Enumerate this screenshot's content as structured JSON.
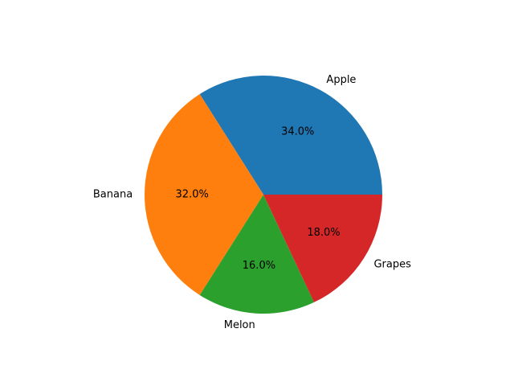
{
  "chart_data": {
    "type": "pie",
    "categories": [
      "Apple",
      "Banana",
      "Melon",
      "Grapes"
    ],
    "values": [
      34.0,
      32.0,
      16.0,
      18.0
    ],
    "percent_labels": [
      "34.0%",
      "32.0%",
      "16.0%",
      "18.0%"
    ],
    "colors": [
      "#1f77b4",
      "#ff7f0e",
      "#2ca02c",
      "#d62728"
    ],
    "start_angle_deg": 0,
    "direction": "counterclockwise"
  }
}
